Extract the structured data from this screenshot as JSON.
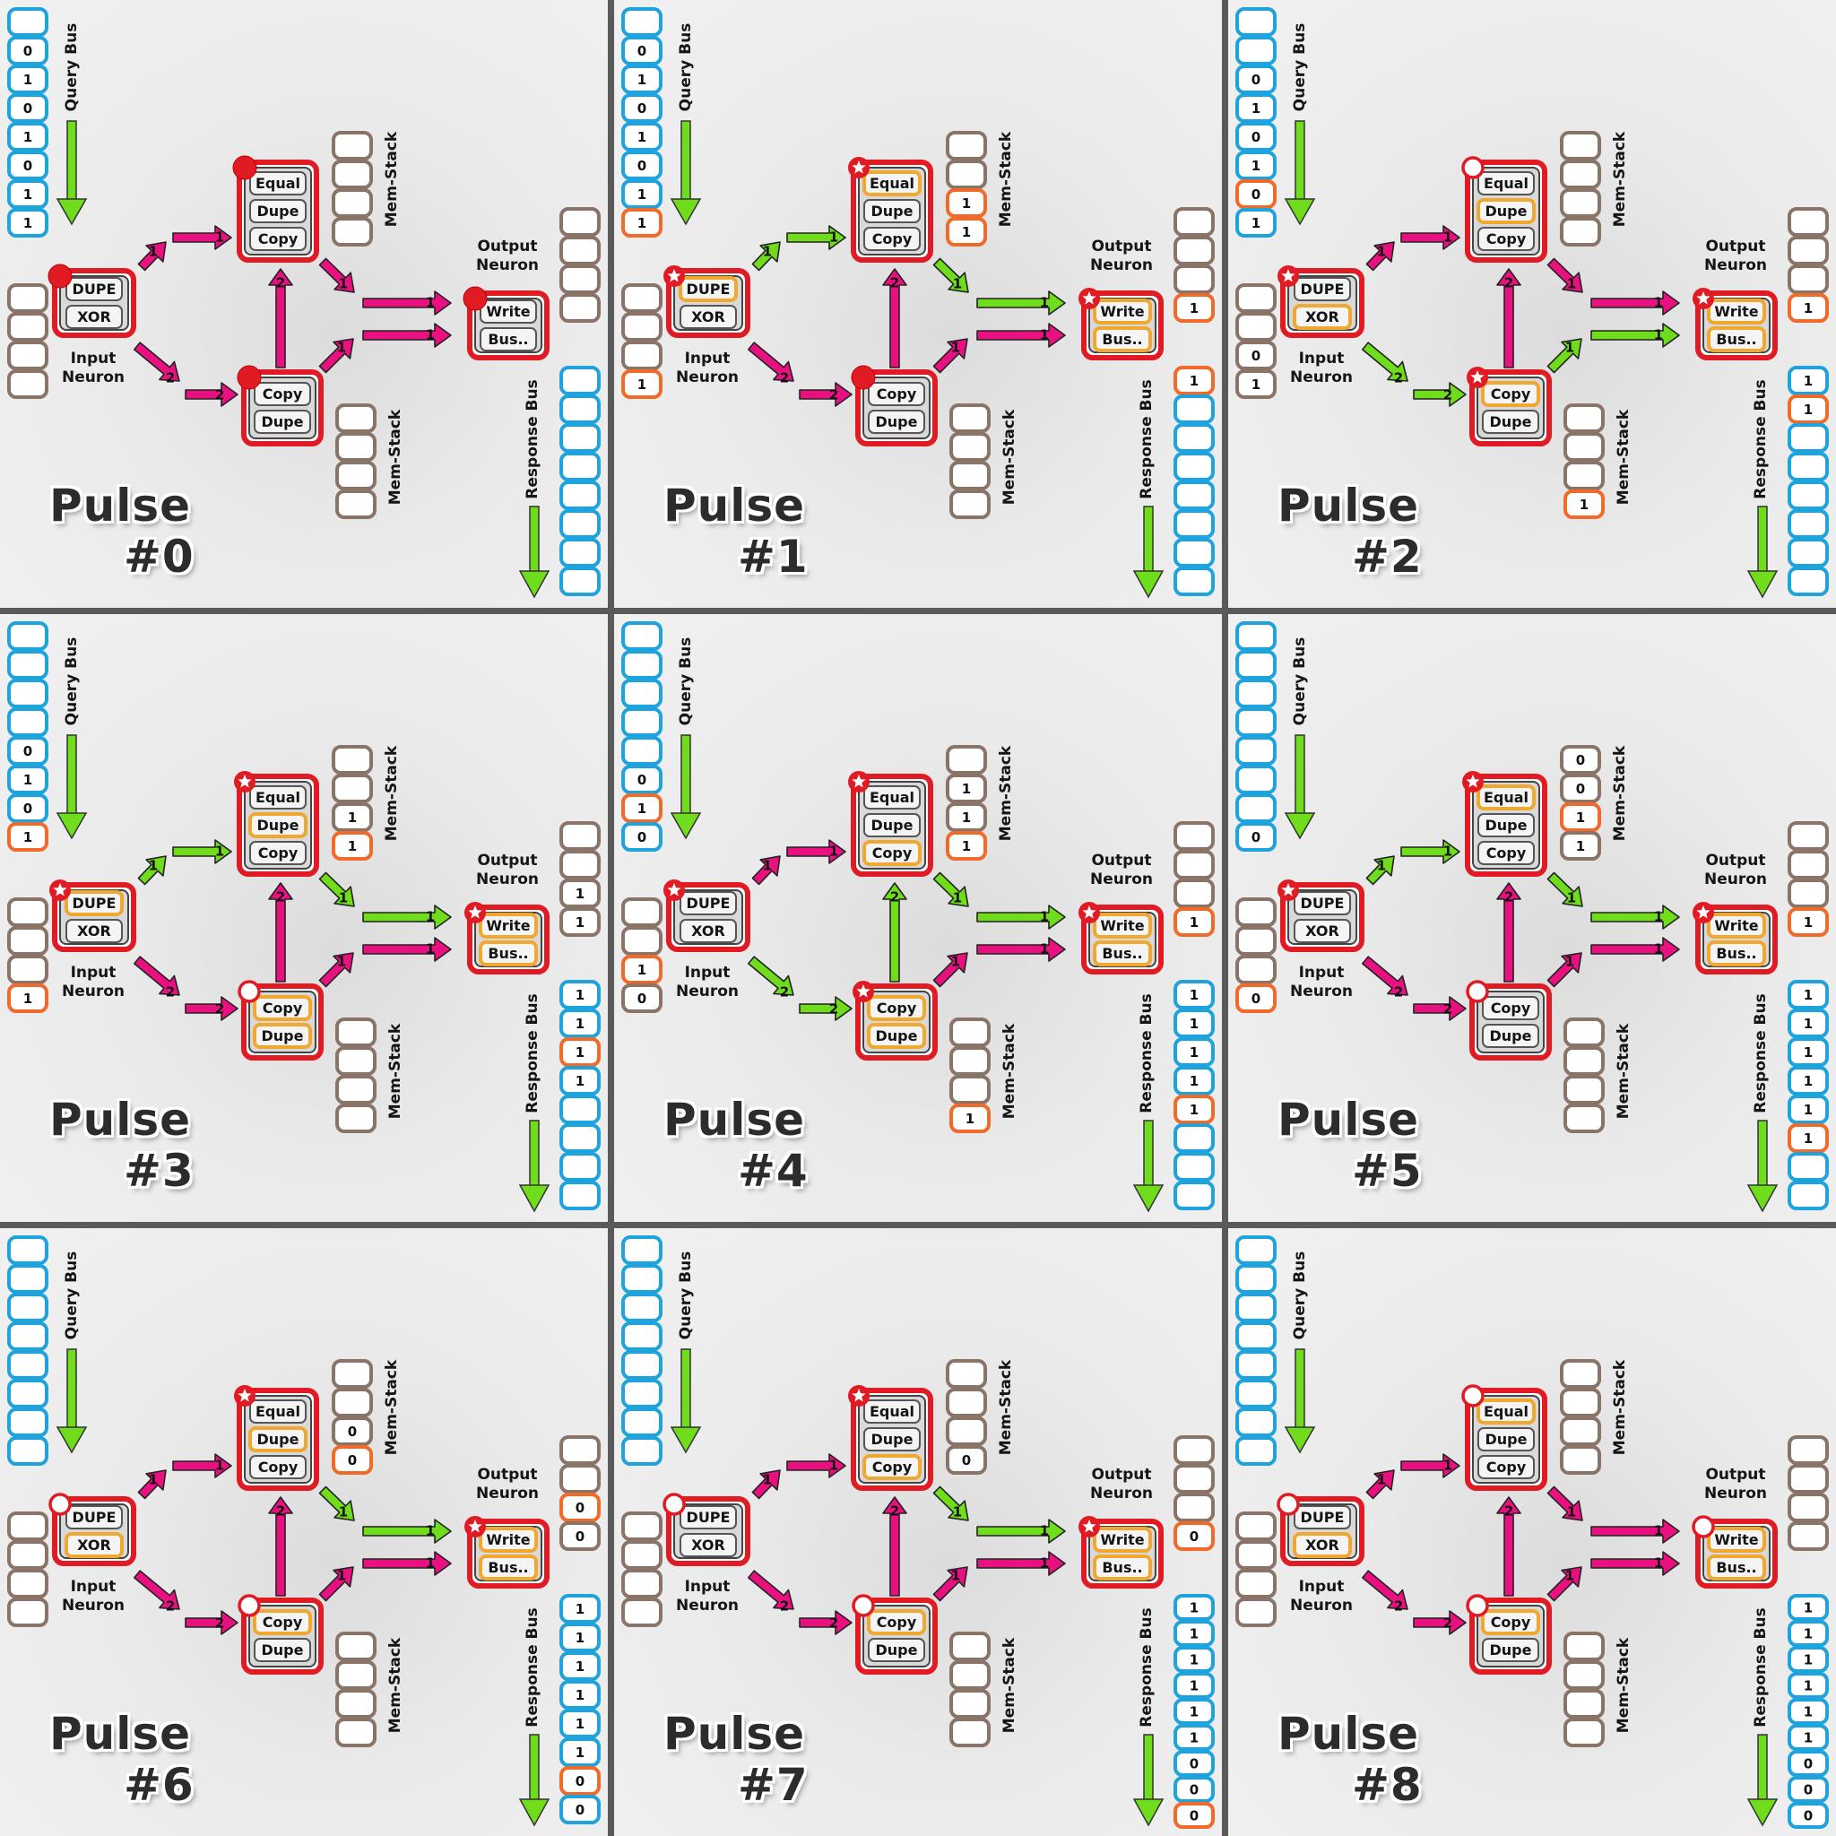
{
  "labels": {
    "query_bus": "Query Bus",
    "response_bus": "Response Bus",
    "mem_stack": "Mem-Stack",
    "input_neuron": [
      "Input",
      "Neuron"
    ],
    "output_neuron": [
      "Output",
      "Neuron"
    ],
    "input_ops": [
      "DUPE",
      "XOR"
    ],
    "top_ops": [
      "Equal",
      "Dupe",
      "Copy"
    ],
    "bottom_ops": [
      "Copy",
      "Dupe"
    ],
    "output_ops": [
      "Write",
      "Bus.."
    ],
    "pulse_word": "Pulse"
  },
  "colors": {
    "pink": "#e8117f",
    "green": "#6fdc1c",
    "blue_cell": "#1fa3dd",
    "brown_cell": "#8a7468",
    "orange_cell": "#f06a2a",
    "neuron_red": "#e01b24",
    "highlight": "#f0a830"
  },
  "panels": [
    {
      "title_num": "#0",
      "input_state": "dot",
      "top_state": "dot",
      "bottom_state": "dot",
      "output_state": "dot",
      "arrows": {
        "in_top": "pink",
        "in_bot": "pink",
        "top_to_out": "pink",
        "bot_to_out": "pink",
        "bot_to_top": "pink"
      },
      "hl": {
        "input": [],
        "top": [],
        "bottom": [],
        "output": false
      },
      "query": [
        "",
        "0",
        "1",
        "0",
        "1",
        "0",
        "1",
        "1"
      ],
      "query_hl": [],
      "in_stack": [
        "",
        "",
        "",
        ""
      ],
      "in_hl": [],
      "top_stack": [
        "",
        "",
        "",
        ""
      ],
      "top_hl": [],
      "bot_stack": [
        "",
        "",
        "",
        ""
      ],
      "bot_hl": [],
      "out_stack": [
        "",
        "",
        "",
        ""
      ],
      "out_hl": [],
      "resp": [
        "",
        "",
        "",
        "",
        "",
        "",
        "",
        ""
      ],
      "resp_hl": []
    },
    {
      "title_num": "#1",
      "input_state": "star",
      "top_state": "star",
      "bottom_state": "dot",
      "output_state": "star",
      "arrows": {
        "in_top": "green",
        "in_bot": "pink",
        "top_to_out": "green",
        "bot_to_out": "pink",
        "bot_to_top": "pink"
      },
      "hl": {
        "input": [
          0
        ],
        "top": [
          0
        ],
        "bottom": [],
        "output": true
      },
      "query": [
        "",
        "0",
        "1",
        "0",
        "1",
        "0",
        "1",
        "1"
      ],
      "query_hl": [
        7
      ],
      "in_stack": [
        "",
        "",
        "",
        "1"
      ],
      "in_hl": [
        3
      ],
      "top_stack": [
        "",
        "",
        "1",
        "1"
      ],
      "top_hl": [
        2,
        3
      ],
      "bot_stack": [
        "",
        "",
        "",
        ""
      ],
      "bot_hl": [],
      "out_stack": [
        "",
        "",
        "",
        "1"
      ],
      "out_hl": [
        3
      ],
      "resp": [
        "1",
        "",
        "",
        "",
        "",
        "",
        "",
        ""
      ],
      "resp_hl": [
        0
      ]
    },
    {
      "title_num": "#2",
      "input_state": "star",
      "top_state": "ring",
      "bottom_state": "star",
      "output_state": "star",
      "arrows": {
        "in_top": "pink",
        "in_bot": "green",
        "top_to_out": "pink",
        "bot_to_out": "green",
        "bot_to_top": "pink"
      },
      "hl": {
        "input": [
          1
        ],
        "top": [
          1
        ],
        "bottom": [
          0
        ],
        "output": true
      },
      "query": [
        "",
        "",
        "0",
        "1",
        "0",
        "1",
        "0",
        "1"
      ],
      "query_hl": [
        6
      ],
      "in_stack": [
        "",
        "",
        "0",
        "1"
      ],
      "in_hl": [],
      "top_stack": [
        "",
        "",
        "",
        ""
      ],
      "top_hl": [],
      "bot_stack": [
        "",
        "",
        "",
        "1"
      ],
      "bot_hl": [
        3
      ],
      "out_stack": [
        "",
        "",
        "",
        "1"
      ],
      "out_hl": [
        3
      ],
      "resp": [
        "1",
        "1",
        "",
        "",
        "",
        "",
        "",
        ""
      ],
      "resp_hl": [
        1
      ]
    },
    {
      "title_num": "#3",
      "input_state": "star",
      "top_state": "star",
      "bottom_state": "ring",
      "output_state": "star",
      "arrows": {
        "in_top": "green",
        "in_bot": "pink",
        "top_to_out": "green",
        "bot_to_out": "pink",
        "bot_to_top": "pink"
      },
      "hl": {
        "input": [
          0
        ],
        "top": [
          1
        ],
        "bottom": [
          0,
          1
        ],
        "output": true
      },
      "query": [
        "",
        "",
        "",
        "",
        "0",
        "1",
        "0",
        "1"
      ],
      "query_hl": [
        7
      ],
      "in_stack": [
        "",
        "",
        "",
        "1"
      ],
      "in_hl": [
        3
      ],
      "top_stack": [
        "",
        "",
        "1",
        "1"
      ],
      "top_hl": [
        3
      ],
      "bot_stack": [
        "",
        "",
        "",
        ""
      ],
      "bot_hl": [],
      "out_stack": [
        "",
        "",
        "1",
        "1"
      ],
      "out_hl": [],
      "resp": [
        "1",
        "1",
        "1",
        "1",
        "",
        "",
        "",
        ""
      ],
      "resp_hl": [
        2
      ]
    },
    {
      "title_num": "#4",
      "input_state": "star",
      "top_state": "star",
      "bottom_state": "star",
      "output_state": "star",
      "arrows": {
        "in_top": "pink",
        "in_bot": "green",
        "top_to_out": "green",
        "bot_to_out": "pink",
        "bot_to_top": "green"
      },
      "hl": {
        "input": [],
        "top": [
          2
        ],
        "bottom": [
          0,
          1
        ],
        "output": true
      },
      "query": [
        "",
        "",
        "",
        "",
        "",
        "0",
        "1",
        "0"
      ],
      "query_hl": [
        6
      ],
      "in_stack": [
        "",
        "",
        "1",
        "0"
      ],
      "in_hl": [
        2
      ],
      "top_stack": [
        "",
        "1",
        "1",
        "1"
      ],
      "top_hl": [
        3
      ],
      "bot_stack": [
        "",
        "",
        "",
        "1"
      ],
      "bot_hl": [
        3
      ],
      "out_stack": [
        "",
        "",
        "",
        "1"
      ],
      "out_hl": [
        3
      ],
      "resp": [
        "1",
        "1",
        "1",
        "1",
        "1",
        "",
        "",
        ""
      ],
      "resp_hl": [
        4
      ]
    },
    {
      "title_num": "#5",
      "input_state": "star",
      "top_state": "star",
      "bottom_state": "ring",
      "output_state": "star",
      "arrows": {
        "in_top": "green",
        "in_bot": "pink",
        "top_to_out": "green",
        "bot_to_out": "pink",
        "bot_to_top": "pink"
      },
      "hl": {
        "input": [],
        "top": [
          0
        ],
        "bottom": [],
        "output": true
      },
      "query": [
        "",
        "",
        "",
        "",
        "",
        "",
        "",
        "0"
      ],
      "query_hl": [],
      "in_stack": [
        "",
        "",
        "",
        "0"
      ],
      "in_hl": [
        3
      ],
      "top_stack": [
        "0",
        "0",
        "1",
        "1"
      ],
      "top_hl": [
        2
      ],
      "bot_stack": [
        "",
        "",
        "",
        ""
      ],
      "bot_hl": [],
      "out_stack": [
        "",
        "",
        "",
        "1"
      ],
      "out_hl": [
        3
      ],
      "resp": [
        "1",
        "1",
        "1",
        "1",
        "1",
        "1",
        "",
        ""
      ],
      "resp_hl": [
        5
      ]
    },
    {
      "title_num": "#6",
      "input_state": "ring",
      "top_state": "star",
      "bottom_state": "ring",
      "output_state": "star",
      "arrows": {
        "in_top": "pink",
        "in_bot": "pink",
        "top_to_out": "green",
        "bot_to_out": "pink",
        "bot_to_top": "pink"
      },
      "hl": {
        "input": [
          1
        ],
        "top": [
          1
        ],
        "bottom": [
          0
        ],
        "output": true
      },
      "query": [
        "",
        "",
        "",
        "",
        "",
        "",
        "",
        ""
      ],
      "query_hl": [],
      "in_stack": [
        "",
        "",
        "",
        ""
      ],
      "in_hl": [],
      "top_stack": [
        "",
        "",
        "0",
        "0"
      ],
      "top_hl": [
        3
      ],
      "bot_stack": [
        "",
        "",
        "",
        ""
      ],
      "bot_hl": [],
      "out_stack": [
        "",
        "",
        "0",
        "0"
      ],
      "out_hl": [
        2
      ],
      "resp": [
        "1",
        "1",
        "1",
        "1",
        "1",
        "1",
        "0",
        "0"
      ],
      "resp_hl": [
        6
      ]
    },
    {
      "title_num": "#7",
      "input_state": "ring",
      "top_state": "star",
      "bottom_state": "ring",
      "output_state": "star",
      "arrows": {
        "in_top": "pink",
        "in_bot": "pink",
        "top_to_out": "green",
        "bot_to_out": "pink",
        "bot_to_top": "pink"
      },
      "hl": {
        "input": [],
        "top": [
          2
        ],
        "bottom": [
          0
        ],
        "output": true
      },
      "query": [
        "",
        "",
        "",
        "",
        "",
        "",
        "",
        ""
      ],
      "query_hl": [],
      "in_stack": [
        "",
        "",
        "",
        ""
      ],
      "in_hl": [],
      "top_stack": [
        "",
        "",
        "",
        "0"
      ],
      "top_hl": [],
      "bot_stack": [
        "",
        "",
        "",
        ""
      ],
      "bot_hl": [],
      "out_stack": [
        "",
        "",
        "",
        "0"
      ],
      "out_hl": [
        3
      ],
      "resp": [
        "1",
        "1",
        "1",
        "1",
        "1",
        "1",
        "0",
        "0",
        "0"
      ],
      "resp_hl": [
        8
      ]
    },
    {
      "title_num": "#8",
      "input_state": "ring",
      "top_state": "ring",
      "bottom_state": "ring",
      "output_state": "ring",
      "arrows": {
        "in_top": "pink",
        "in_bot": "pink",
        "top_to_out": "pink",
        "bot_to_out": "pink",
        "bot_to_top": "pink"
      },
      "hl": {
        "input": [
          1
        ],
        "top": [
          0
        ],
        "bottom": [
          0
        ],
        "output": true
      },
      "query": [
        "",
        "",
        "",
        "",
        "",
        "",
        "",
        ""
      ],
      "query_hl": [],
      "in_stack": [
        "",
        "",
        "",
        ""
      ],
      "in_hl": [],
      "top_stack": [
        "",
        "",
        "",
        ""
      ],
      "top_hl": [],
      "bot_stack": [
        "",
        "",
        "",
        ""
      ],
      "bot_hl": [],
      "out_stack": [
        "",
        "",
        "",
        ""
      ],
      "out_hl": [],
      "resp": [
        "1",
        "1",
        "1",
        "1",
        "1",
        "1",
        "0",
        "0",
        "0"
      ],
      "resp_hl": []
    }
  ]
}
